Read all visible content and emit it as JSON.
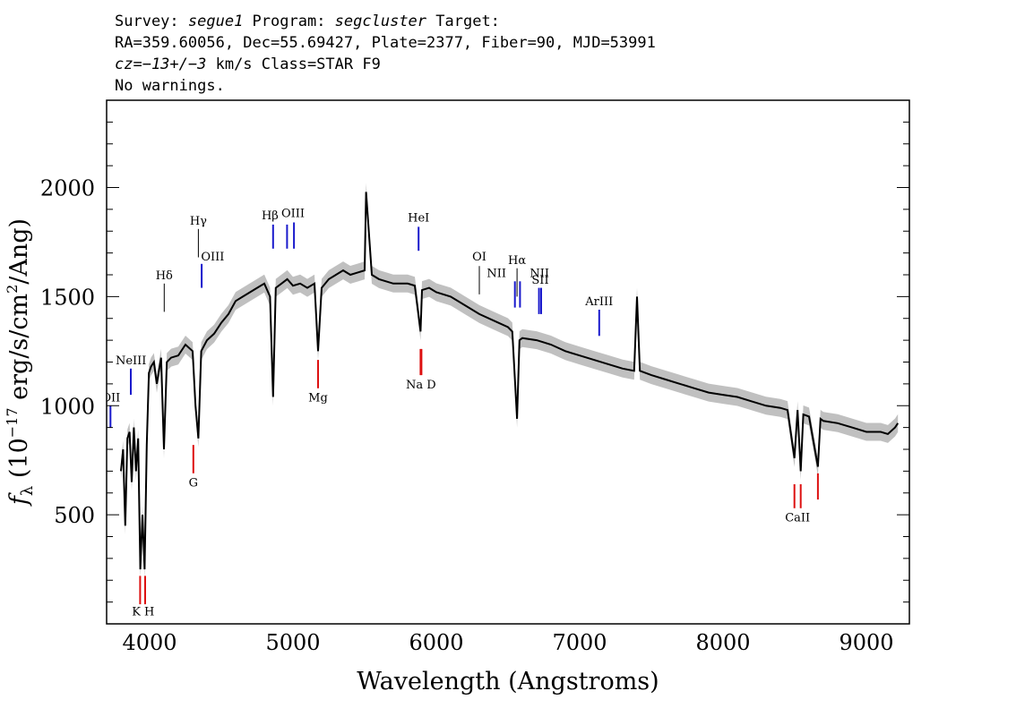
{
  "header": {
    "line1": {
      "a": "Survey: ",
      "b": "segue1",
      "c": " Program: ",
      "d": "segcluster",
      "e": " Target:"
    },
    "line2": "RA=359.60056, Dec=55.69427, Plate=2377, Fiber=90, MJD=53991",
    "line3": {
      "a": "cz=−13+/−3",
      "b": " km/s Class=STAR F9"
    },
    "line4": "No warnings."
  },
  "chart_data": {
    "type": "line",
    "title": "Survey: segue1 Program: segcluster Target:",
    "xlabel": "Wavelength (Angstroms)",
    "ylabel_parts": {
      "f": "f",
      "sub": "λ",
      "open": " (10",
      "exp": "−17",
      "mid": " erg/s/cm",
      "sq": "2",
      "close": "/Ang)"
    },
    "xlim": [
      3700,
      9300
    ],
    "ylim": [
      0,
      2400
    ],
    "xticks": [
      4000,
      5000,
      6000,
      7000,
      8000,
      9000
    ],
    "yticks": [
      500,
      1000,
      1500,
      2000
    ],
    "xtick_labels": [
      "4000",
      "5000",
      "6000",
      "7000",
      "8000",
      "9000"
    ],
    "ytick_labels": [
      "500",
      "1000",
      "1500",
      "2000"
    ],
    "colors": {
      "flux": "#000000",
      "error": "#c0c0c0",
      "emission": "#1a1acc",
      "absorption": "#dd1111",
      "neutral": "#000000"
    },
    "series": [
      {
        "name": "flux",
        "x": [
          3800,
          3815,
          3830,
          3845,
          3860,
          3875,
          3890,
          3905,
          3920,
          3935,
          3950,
          3965,
          3980,
          3995,
          4010,
          4030,
          4050,
          4080,
          4100,
          4120,
          4150,
          4200,
          4250,
          4300,
          4320,
          4340,
          4360,
          4400,
          4450,
          4500,
          4550,
          4600,
          4650,
          4700,
          4750,
          4800,
          4840,
          4861,
          4880,
          4920,
          4960,
          5000,
          5050,
          5100,
          5150,
          5175,
          5200,
          5250,
          5300,
          5350,
          5400,
          5450,
          5500,
          5510,
          5550,
          5600,
          5700,
          5800,
          5850,
          5890,
          5900,
          5950,
          6000,
          6100,
          6200,
          6300,
          6400,
          6500,
          6530,
          6563,
          6580,
          6600,
          6700,
          6800,
          6900,
          7000,
          7100,
          7200,
          7300,
          7380,
          7400,
          7420,
          7500,
          7600,
          7700,
          7800,
          7900,
          8000,
          8100,
          8200,
          8300,
          8400,
          8450,
          8498,
          8520,
          8542,
          8560,
          8600,
          8662,
          8680,
          8700,
          8800,
          8900,
          9000,
          9100,
          9150,
          9200,
          9220
        ],
        "values": [
          700,
          800,
          450,
          850,
          880,
          650,
          900,
          700,
          850,
          250,
          500,
          250,
          820,
          1150,
          1180,
          1200,
          1100,
          1220,
          800,
          1200,
          1220,
          1230,
          1280,
          1250,
          1000,
          850,
          1250,
          1300,
          1330,
          1380,
          1420,
          1480,
          1500,
          1520,
          1540,
          1560,
          1500,
          1040,
          1540,
          1560,
          1580,
          1550,
          1560,
          1540,
          1560,
          1250,
          1540,
          1580,
          1600,
          1620,
          1600,
          1610,
          1620,
          1980,
          1600,
          1580,
          1560,
          1560,
          1550,
          1340,
          1530,
          1540,
          1520,
          1500,
          1460,
          1420,
          1390,
          1360,
          1340,
          940,
          1300,
          1310,
          1300,
          1280,
          1250,
          1230,
          1210,
          1190,
          1170,
          1160,
          1500,
          1160,
          1140,
          1120,
          1100,
          1080,
          1060,
          1050,
          1040,
          1020,
          1000,
          990,
          980,
          760,
          980,
          700,
          960,
          950,
          720,
          940,
          930,
          920,
          900,
          880,
          880,
          870,
          900,
          920
        ]
      }
    ],
    "line_markers": [
      {
        "label": "OII",
        "x": 3727,
        "y1": 900,
        "y2": 1000,
        "color": "emission",
        "label_y": 1020
      },
      {
        "label": "NeIII",
        "x": 3869,
        "y1": 1050,
        "y2": 1170,
        "color": "emission",
        "label_y": 1190
      },
      {
        "label": "Hδ",
        "x": 4102,
        "y1": 1430,
        "y2": 1560,
        "color": "neutral",
        "label_y": 1580
      },
      {
        "label": "Hγ",
        "x": 4340,
        "y1": 1680,
        "y2": 1810,
        "color": "neutral",
        "label_y": 1830
      },
      {
        "label": "OIII",
        "x": 4363,
        "y1": 1540,
        "y2": 1650,
        "color": "emission",
        "label_y": 1665
      },
      {
        "label": "Hβ",
        "x": 4861,
        "y1": 1720,
        "y2": 1830,
        "color": "emission",
        "label_y": 1850
      },
      {
        "label": "OIII",
        "x": 4959,
        "y1": 1720,
        "y2": 1830,
        "color": "emission",
        "label_y": 1860
      },
      {
        "label": "OIII",
        "x": 5007,
        "y1": 1720,
        "y2": 1840,
        "color": "emission",
        "label_y": 1860
      },
      {
        "label": "HeI",
        "x": 5876,
        "y1": 1710,
        "y2": 1820,
        "color": "emission",
        "label_y": 1840
      },
      {
        "label": "OI",
        "x": 6300,
        "y1": 1510,
        "y2": 1640,
        "color": "neutral",
        "label_y": 1660
      },
      {
        "label": "NII",
        "x": 6548,
        "y1": 1450,
        "y2": 1570,
        "color": "emission",
        "label_y": 1585
      },
      {
        "label": "Hα",
        "x": 6563,
        "y1": 1500,
        "y2": 1630,
        "color": "neutral",
        "label_y": 1645
      },
      {
        "label": "NII",
        "x": 6584,
        "y1": 1450,
        "y2": 1570,
        "color": "emission",
        "label_y": 1585
      },
      {
        "label": "SII",
        "x": 6716,
        "y1": 1420,
        "y2": 1540,
        "color": "emission",
        "label_y": 1560
      },
      {
        "label": "SII",
        "x": 6731,
        "y1": 1420,
        "y2": 1540,
        "color": "emission",
        "label_y": 1560
      },
      {
        "label": "ArIII",
        "x": 7136,
        "y1": 1320,
        "y2": 1440,
        "color": "emission",
        "label_y": 1460
      },
      {
        "label": "K",
        "x": 3934,
        "y1": 90,
        "y2": 220,
        "color": "absorption",
        "label_y": 40
      },
      {
        "label": "H",
        "x": 3969,
        "y1": 90,
        "y2": 220,
        "color": "absorption",
        "label_y": 40
      },
      {
        "label": "G",
        "x": 4305,
        "y1": 690,
        "y2": 820,
        "color": "absorption",
        "label_y": 630
      },
      {
        "label": "Mg",
        "x": 5175,
        "y1": 1080,
        "y2": 1210,
        "color": "absorption",
        "label_y": 1020
      },
      {
        "label": "Na",
        "x": 5890,
        "y1": 1140,
        "y2": 1260,
        "color": "absorption",
        "label_y": 1080
      },
      {
        "label": "D",
        "x": 5896,
        "y1": 1140,
        "y2": 1260,
        "color": "absorption",
        "label_y": 1080
      },
      {
        "label": "CaII",
        "x": 8498,
        "y1": 530,
        "y2": 640,
        "color": "absorption",
        "label_y": 470
      },
      {
        "label": "CaII",
        "x": 8542,
        "y1": 530,
        "y2": 640,
        "color": "absorption",
        "label_y": 470
      },
      {
        "label": "CaII",
        "x": 8662,
        "y1": 570,
        "y2": 690,
        "color": "absorption",
        "label_y": 470
      }
    ],
    "marker_labels": [
      {
        "text": "OII",
        "x": 3730,
        "y": 1020
      },
      {
        "text": "NeIII",
        "x": 3870,
        "y": 1190
      },
      {
        "text": "Hδ",
        "x": 4102,
        "y": 1580
      },
      {
        "text": "Hγ",
        "x": 4340,
        "y": 1830
      },
      {
        "text": "OIII",
        "x": 4440,
        "y": 1665
      },
      {
        "text": "Hβ",
        "x": 4840,
        "y": 1855
      },
      {
        "text": "OIII",
        "x": 5000,
        "y": 1865
      },
      {
        "text": "HeI",
        "x": 5876,
        "y": 1845
      },
      {
        "text": "OI",
        "x": 6300,
        "y": 1665
      },
      {
        "text": "NII",
        "x": 6420,
        "y": 1590
      },
      {
        "text": "Hα",
        "x": 6563,
        "y": 1650
      },
      {
        "text": "NII",
        "x": 6720,
        "y": 1590
      },
      {
        "text": "SII",
        "x": 6725,
        "y": 1560
      },
      {
        "text": "ArIII",
        "x": 7136,
        "y": 1460
      },
      {
        "text": "K H",
        "x": 3955,
        "y": 40
      },
      {
        "text": "G",
        "x": 4305,
        "y": 630
      },
      {
        "text": "Mg",
        "x": 5175,
        "y": 1020
      },
      {
        "text": "Na  D",
        "x": 5893,
        "y": 1080
      },
      {
        "text": "CaII",
        "x": 8520,
        "y": 470
      }
    ]
  }
}
